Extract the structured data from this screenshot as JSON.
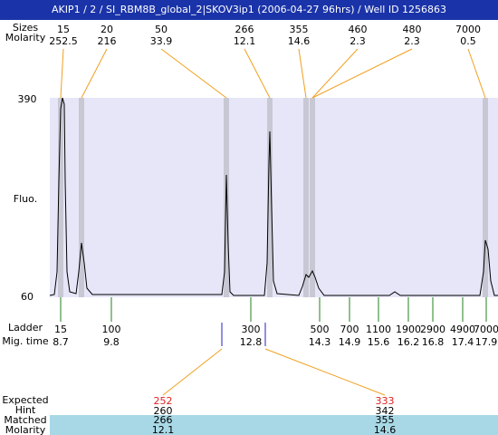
{
  "header": {
    "title": "AKIP1 / 2 / SI_RBM8B_global_2|SKOV3ip1 (2006-04-27 96hrs) / Well ID 1256863"
  },
  "top": {
    "row_labels": [
      "Sizes",
      "Molarity"
    ],
    "peaks": [
      {
        "size": "15",
        "molarity": "252.5"
      },
      {
        "size": "20",
        "molarity": "216"
      },
      {
        "size": "50",
        "molarity": "33.9"
      },
      {
        "size": "266",
        "molarity": "12.1"
      },
      {
        "size": "355",
        "molarity": "14.6"
      },
      {
        "size": "460",
        "molarity": "2.3"
      },
      {
        "size": "480",
        "molarity": "2.3"
      },
      {
        "size": "7000",
        "molarity": "0.5"
      }
    ]
  },
  "plot": {
    "y_max_label": "390",
    "y_min_label": "60",
    "y_axis_label": "Fluo."
  },
  "ladder": {
    "row_labels": [
      "Ladder",
      "Mig. time"
    ],
    "sizes": [
      "15",
      "100",
      "300",
      "500",
      "700",
      "1100",
      "1900",
      "2900",
      "4900",
      "7000"
    ],
    "mig_times": [
      "8.7",
      "9.8",
      "12.8",
      "14.3",
      "14.9",
      "15.6",
      "16.2",
      "16.8",
      "17.4",
      "17.9"
    ]
  },
  "expected": {
    "row_labels": [
      "Expected",
      "Hint",
      "Matched",
      "Molarity"
    ],
    "peaks": [
      {
        "expected": "252",
        "hint": "260",
        "matched": "266",
        "molarity": "12.1"
      },
      {
        "expected": "333",
        "hint": "342",
        "matched": "355",
        "molarity": "14.6"
      }
    ]
  }
}
